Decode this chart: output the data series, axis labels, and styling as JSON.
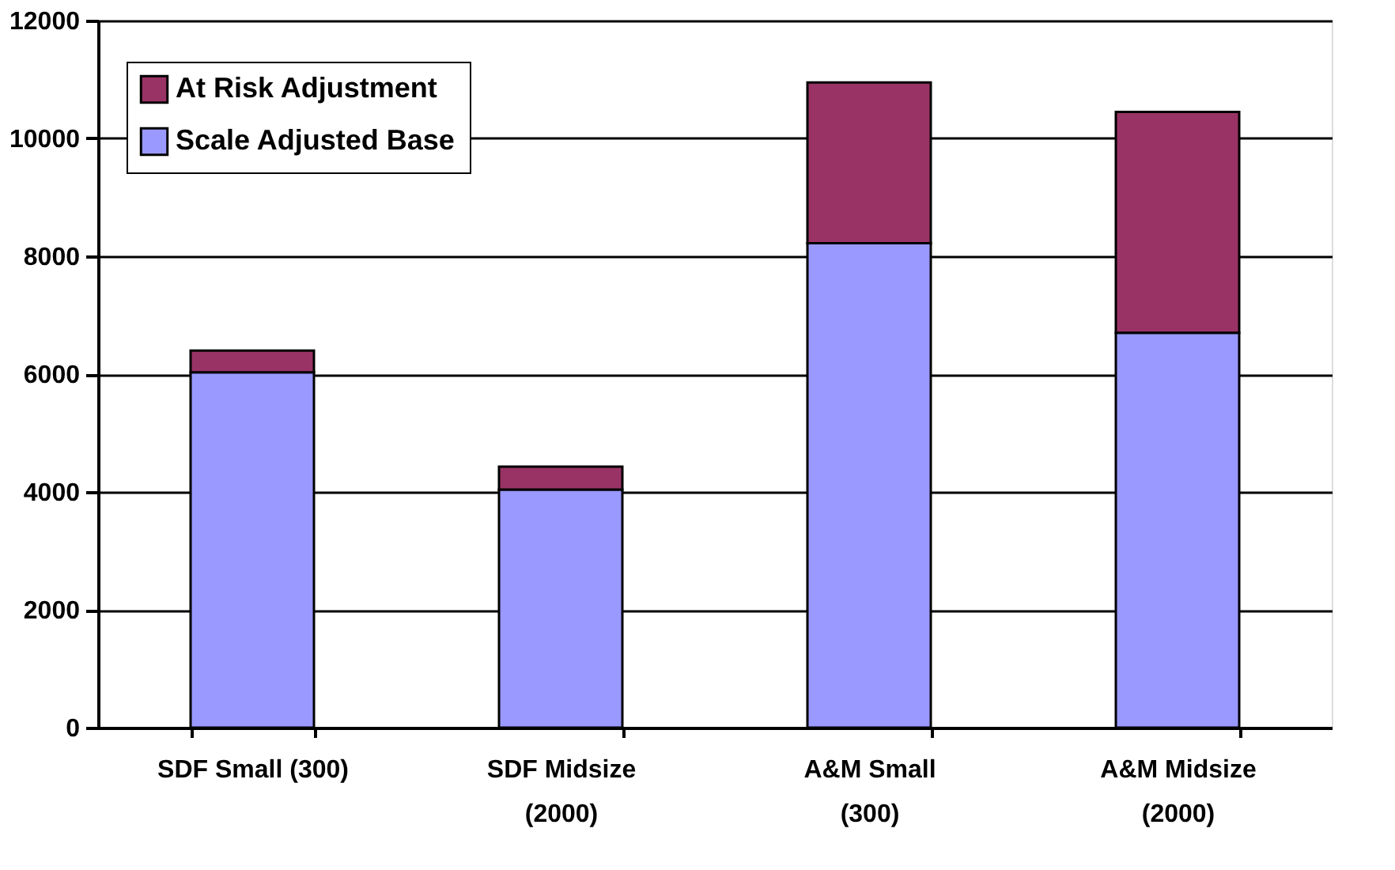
{
  "chart_data": {
    "type": "bar",
    "stacked": true,
    "categories": [
      "SDF Small (300)",
      "SDF Midsize\n(2000)",
      "A&M Small\n(300)",
      "A&M Midsize\n(2000)"
    ],
    "series": [
      {
        "name": "Scale Adjusted Base",
        "color": "#9999ff",
        "values": [
          6030,
          4040,
          8220,
          6700
        ]
      },
      {
        "name": "At Risk Adjustment",
        "color": "#993366",
        "values": [
          370,
          390,
          2730,
          3750
        ]
      }
    ],
    "ylim": [
      0,
      12000
    ],
    "yticks": [
      0,
      2000,
      4000,
      6000,
      8000,
      10000,
      12000
    ],
    "grid": "y",
    "legend": "top left"
  }
}
